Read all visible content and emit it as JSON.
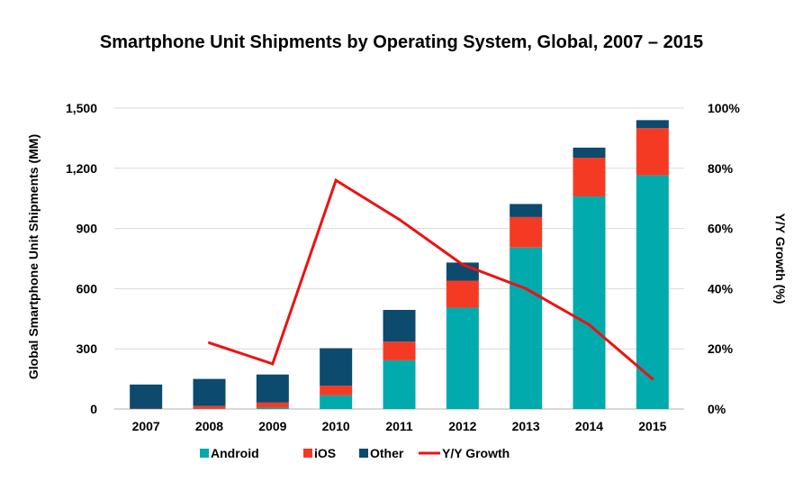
{
  "chart_data": {
    "type": "bar",
    "stacked": true,
    "title": "Smartphone Unit Shipments by Operating System, Global, 2007 – 2015",
    "xlabel": "",
    "ylabel": "Global Smartphone Unit Shipments (MM)",
    "y2label": "Y/Y Growth (%)",
    "ylim": [
      0,
      1500
    ],
    "y2lim": [
      0,
      100
    ],
    "yticks": [
      "0",
      "300",
      "600",
      "900",
      "1,200",
      "1,500"
    ],
    "y2ticks": [
      "0%",
      "20%",
      "40%",
      "60%",
      "80%",
      "100%"
    ],
    "categories": [
      "2007",
      "2008",
      "2009",
      "2010",
      "2011",
      "2012",
      "2013",
      "2014",
      "2015"
    ],
    "series": [
      {
        "name": "Android",
        "type": "bar",
        "color": "#00aaad",
        "values": [
          0,
          1,
          7,
          68,
          243,
          505,
          805,
          1060,
          1165
        ]
      },
      {
        "name": "iOS",
        "type": "bar",
        "color": "#f53a24",
        "values": [
          2,
          14,
          25,
          48,
          93,
          135,
          152,
          193,
          235
        ]
      },
      {
        "name": "Other",
        "type": "bar",
        "color": "#0c4a6e",
        "values": [
          120,
          135,
          140,
          187,
          158,
          90,
          65,
          50,
          40
        ]
      },
      {
        "name": "Y/Y Growth",
        "type": "line",
        "axis": "right",
        "color": "#ee1111",
        "values": [
          null,
          22,
          15,
          76,
          63,
          48,
          40,
          28,
          10
        ]
      }
    ],
    "grid": true,
    "legend_position": "bottom"
  }
}
